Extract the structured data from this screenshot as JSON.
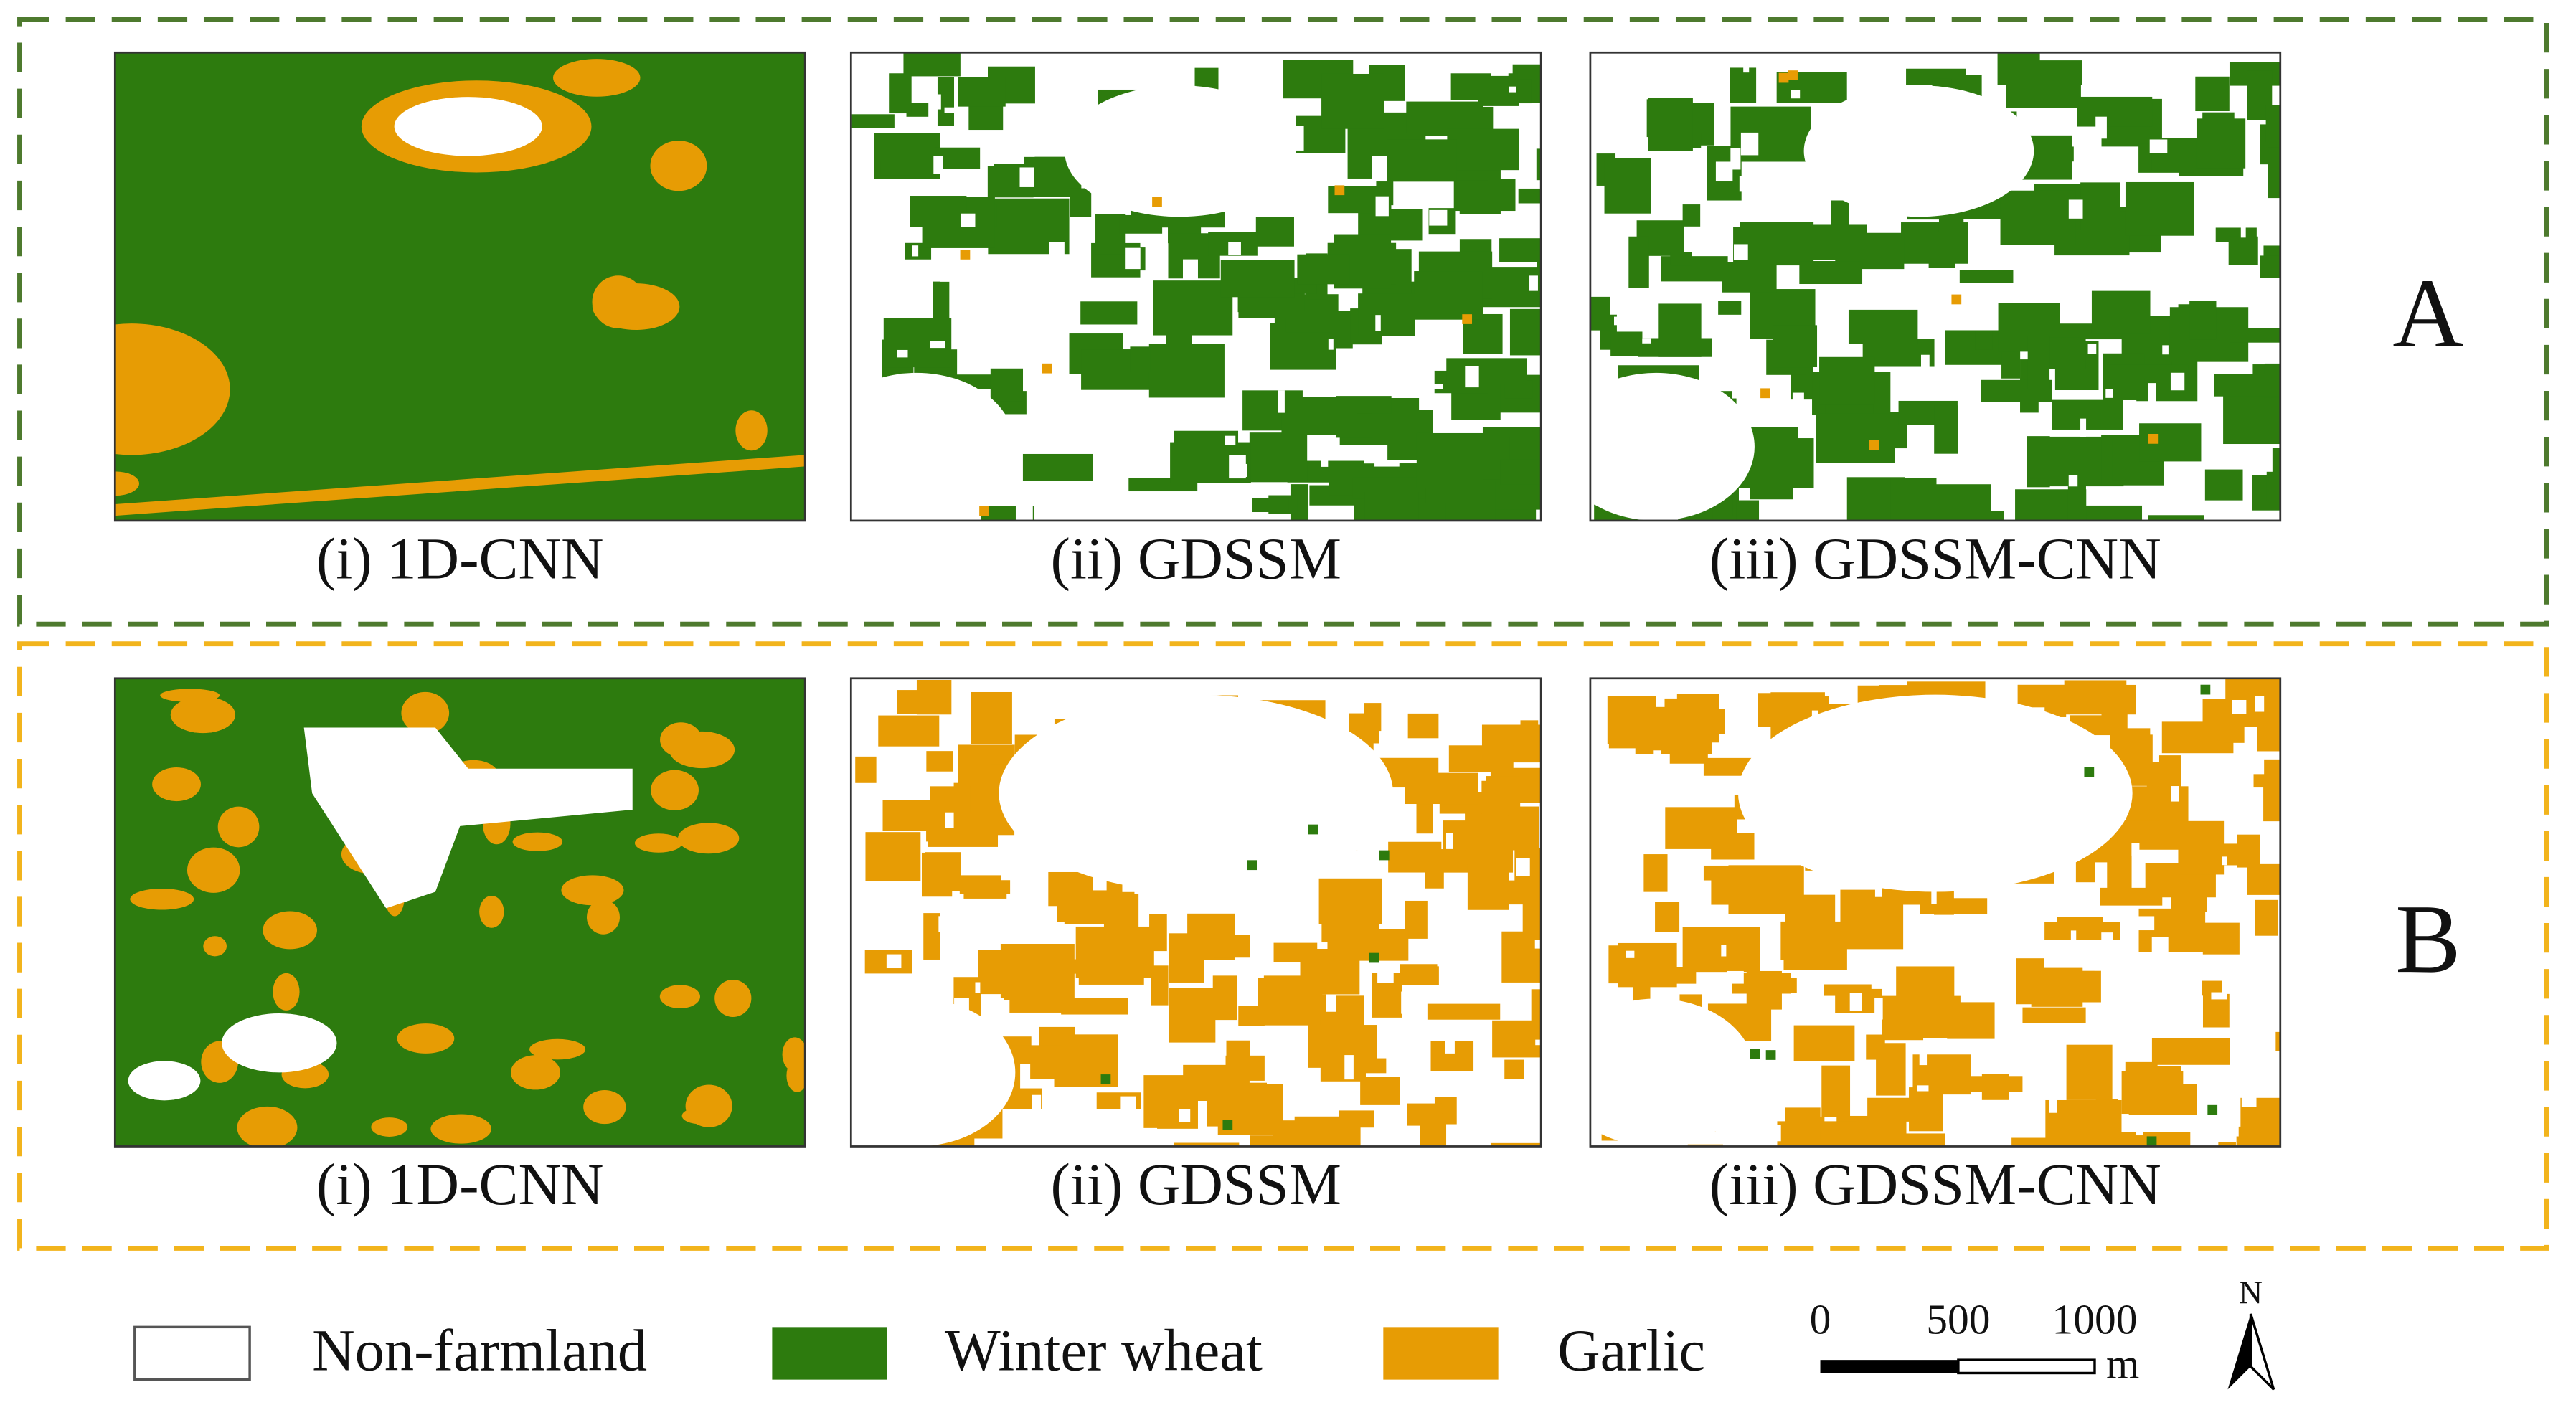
{
  "groups": [
    {
      "label": "A",
      "panels": [
        "(i) 1D-CNN",
        "(ii) GDSSM",
        "(iii) GDSSM-CNN"
      ]
    },
    {
      "label": "B",
      "panels": [
        "(i) 1D-CNN",
        "(ii) GDSSM",
        "(iii) GDSSM-CNN"
      ]
    }
  ],
  "legend": [
    "Non-farmland",
    "Winter wheat",
    "Garlic"
  ],
  "scale_bar": {
    "labels": [
      "0",
      "500",
      "1000"
    ],
    "unit": "m"
  },
  "north": "N"
}
